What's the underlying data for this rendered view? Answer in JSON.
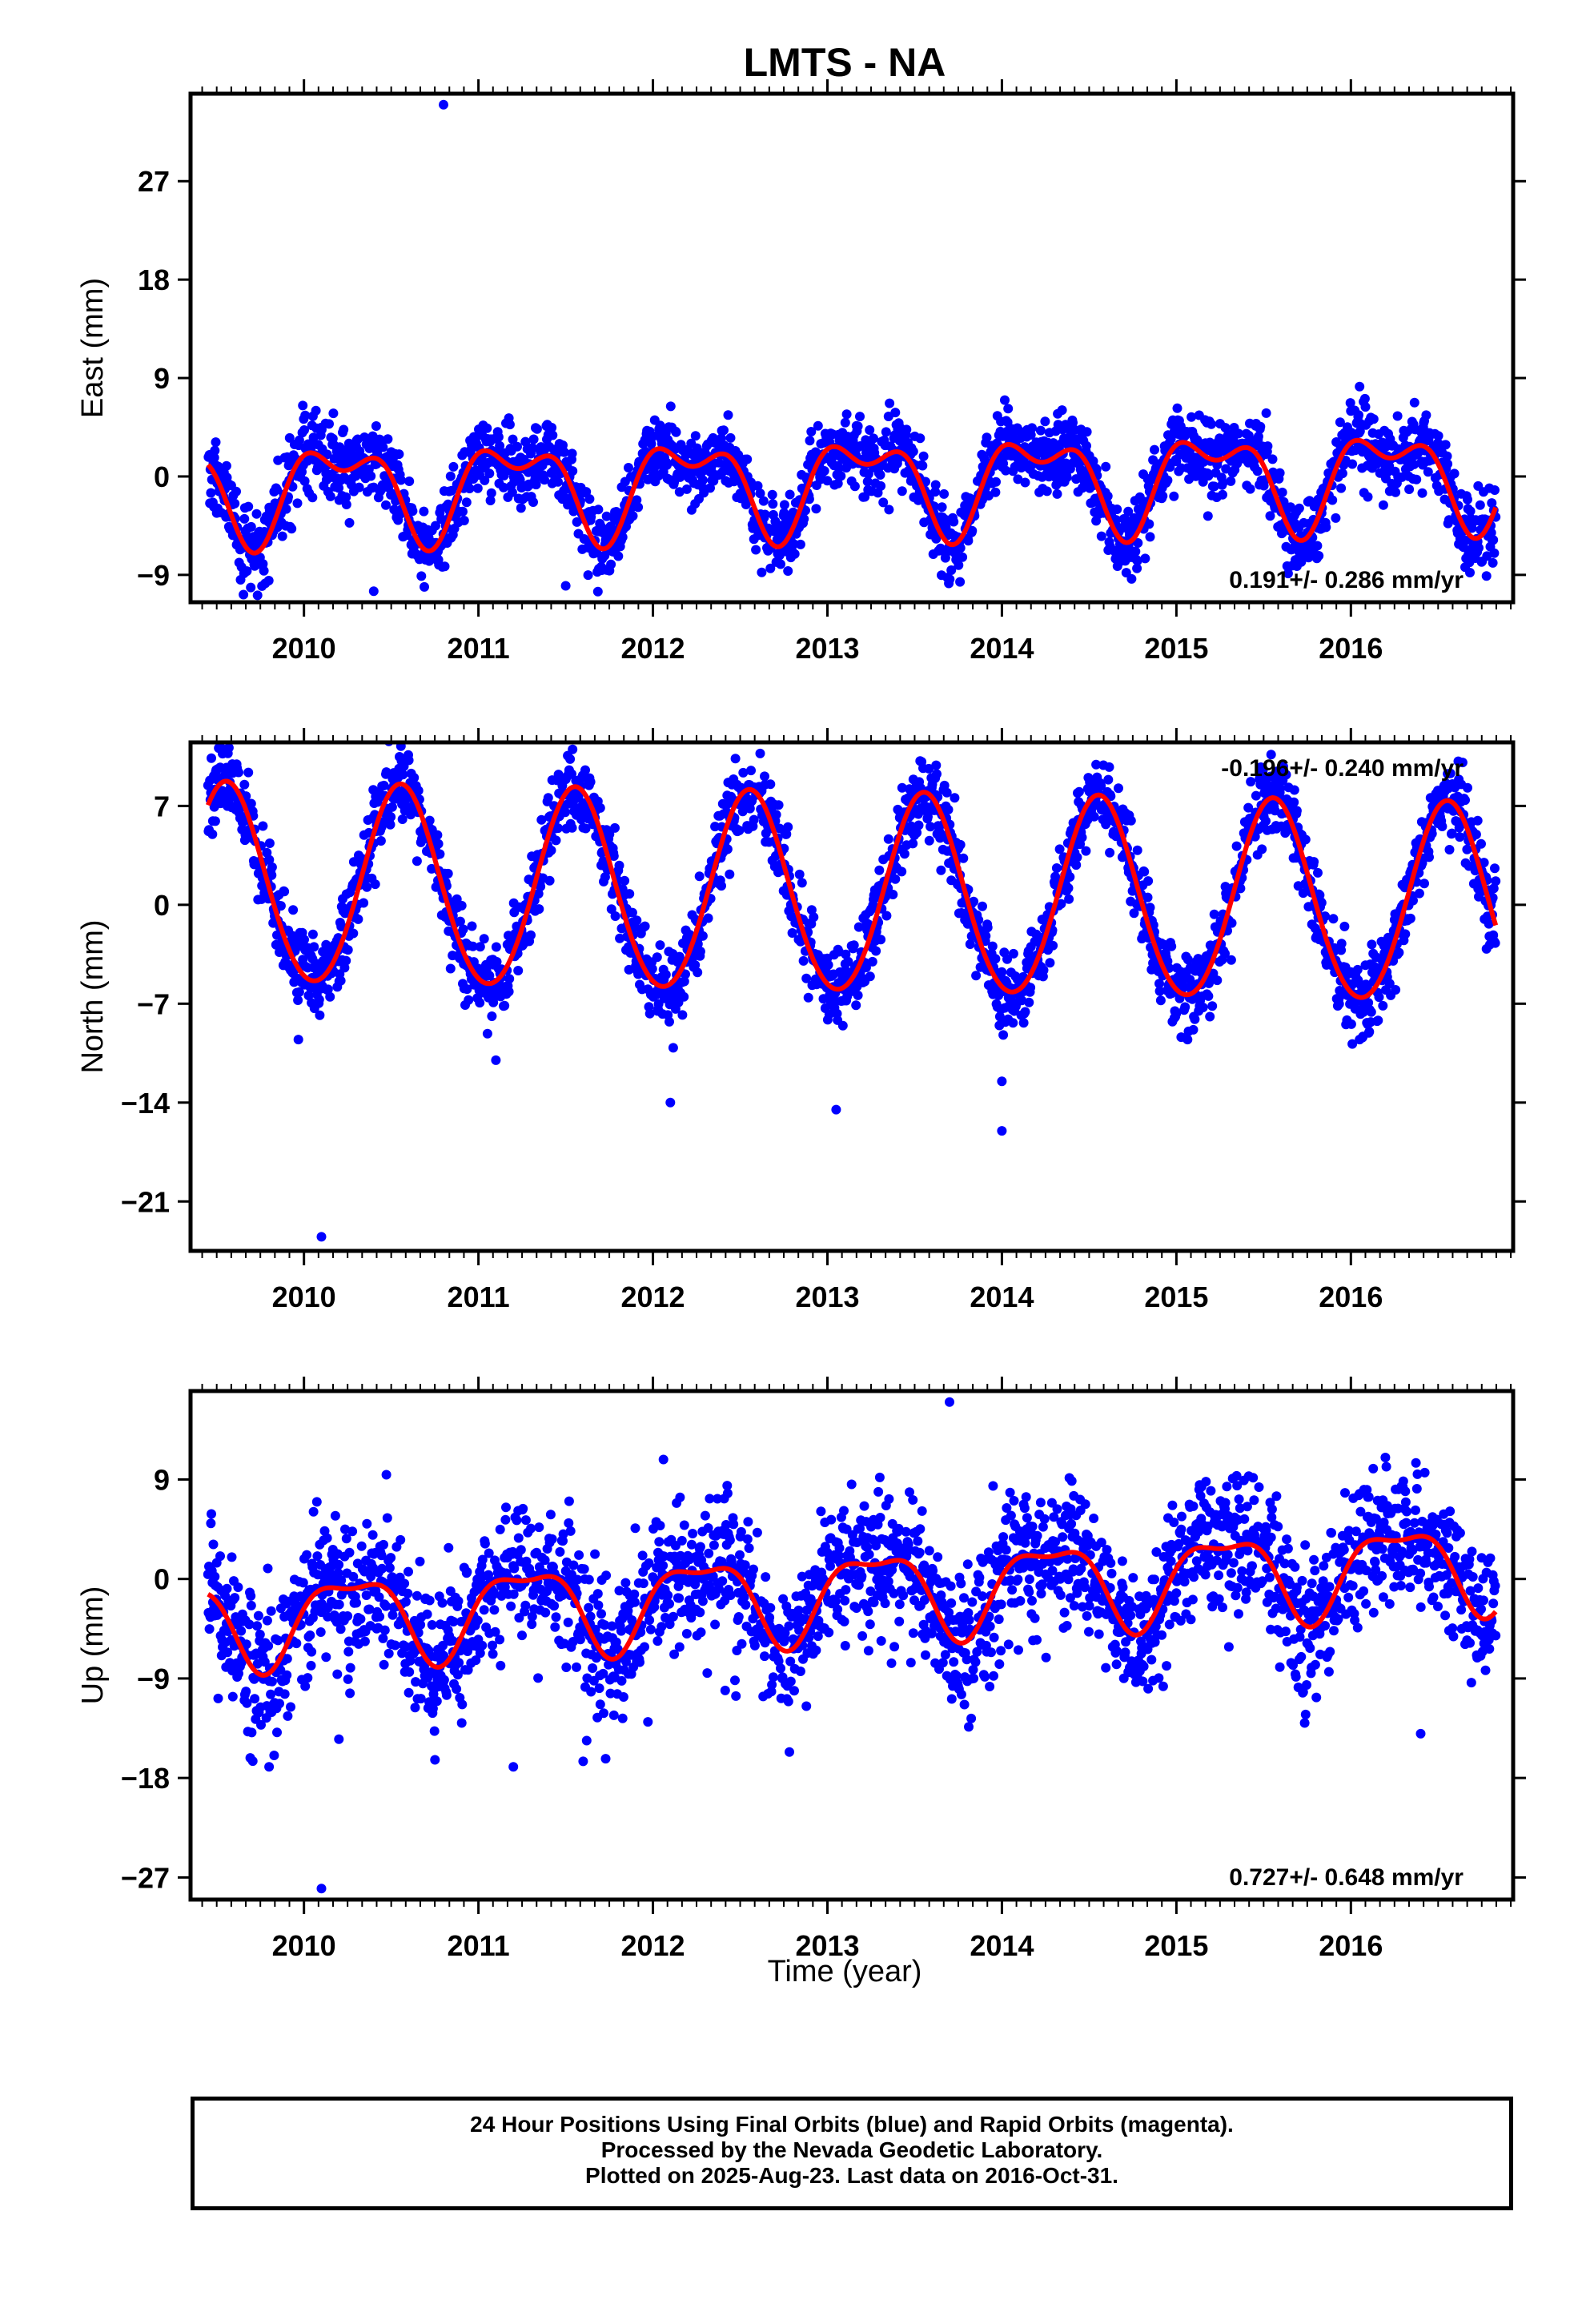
{
  "title": "LMTS - NA",
  "xlabel": "Time (year)",
  "footer": {
    "line1": "24 Hour Positions Using Final Orbits (blue) and Rapid Orbits (magenta).",
    "line2": "Processed by the Nevada Geodetic Laboratory.",
    "line3": "Plotted on 2025-Aug-23. Last data on 2016-Oct-31."
  },
  "colors": {
    "points": "#0000ff",
    "fit": "#ff0000",
    "frame": "#000000"
  },
  "chart_data": [
    {
      "type": "scatter",
      "component": "East",
      "ylabel": "East (mm)",
      "rate_label": "0.191+/- 0.286 mm/yr",
      "rate_position": "bottom-right",
      "xlim": [
        2009.35,
        2016.93
      ],
      "ylim": [
        -11.5,
        35
      ],
      "x_ticks": [
        2010,
        2011,
        2012,
        2013,
        2014,
        2015,
        2016
      ],
      "y_ticks": [
        -9,
        0,
        9,
        18,
        27
      ],
      "first_data_year": 2009.45,
      "last_data_year": 2016.83,
      "fit": {
        "offset": -0.5,
        "rate": 0.191,
        "annual_cos": 1.0,
        "annual_sin": 3.6,
        "semi_cos": 2.0,
        "semi_sin": -0.8
      },
      "scatter_sd": 1.7,
      "outliers": [
        {
          "x": 2010.8,
          "y": 34
        },
        {
          "x": 2011.5,
          "y": -10
        },
        {
          "x": 2010.4,
          "y": -10.5
        }
      ],
      "series": [
        {
          "name": "Final Orbits (blue)",
          "n_points": 2650
        }
      ]
    },
    {
      "type": "scatter",
      "component": "North",
      "ylabel": "North (mm)",
      "rate_label": "-0.196+/- 0.240 mm/yr",
      "rate_position": "top-right",
      "xlim": [
        2009.35,
        2016.93
      ],
      "ylim": [
        -24.5,
        11.5
      ],
      "x_ticks": [
        2010,
        2011,
        2012,
        2013,
        2014,
        2015,
        2016
      ],
      "y_ticks": [
        -21,
        -14,
        -7,
        0,
        7
      ],
      "first_data_year": 2009.45,
      "last_data_year": 2016.83,
      "fit": {
        "offset": 0.7,
        "rate": -0.196,
        "annual_cos": -6.6,
        "annual_sin": -2.4,
        "semi_cos": 0.3,
        "semi_sin": 0.2
      },
      "scatter_sd": 1.4,
      "outliers": [
        {
          "x": 2010.1,
          "y": -23.5
        },
        {
          "x": 2014.0,
          "y": -16
        },
        {
          "x": 2013.05,
          "y": -14.5
        },
        {
          "x": 2012.1,
          "y": -14
        },
        {
          "x": 2011.1,
          "y": -11
        },
        {
          "x": 2014.0,
          "y": -12.5
        }
      ],
      "series": [
        {
          "name": "Final Orbits (blue)",
          "n_points": 2650
        }
      ]
    },
    {
      "type": "scatter",
      "component": "Up",
      "ylabel": "Up (mm)",
      "rate_label": "0.727+/- 0.648 mm/yr",
      "rate_position": "bottom-right",
      "xlim": [
        2009.35,
        2016.93
      ],
      "ylim": [
        -29,
        17
      ],
      "x_ticks": [
        2010,
        2011,
        2012,
        2013,
        2014,
        2015,
        2016
      ],
      "y_ticks": [
        -27,
        -18,
        -9,
        0,
        9
      ],
      "first_data_year": 2009.45,
      "last_data_year": 2016.83,
      "fit": {
        "offset": -1.3,
        "rate": 0.727,
        "annual_cos": -0.5,
        "annual_sin": 3.7,
        "semi_cos": 1.3,
        "semi_sin": 0.3
      },
      "scatter_sd": 3.2,
      "outliers": [
        {
          "x": 2010.1,
          "y": -28
        },
        {
          "x": 2009.8,
          "y": -17
        },
        {
          "x": 2011.2,
          "y": -17
        },
        {
          "x": 2011.6,
          "y": -16.5
        },
        {
          "x": 2010.2,
          "y": -14.5
        },
        {
          "x": 2016.4,
          "y": -14
        },
        {
          "x": 2013.7,
          "y": 16
        }
      ],
      "series": [
        {
          "name": "Final Orbits (blue)",
          "n_points": 2650
        }
      ]
    }
  ]
}
